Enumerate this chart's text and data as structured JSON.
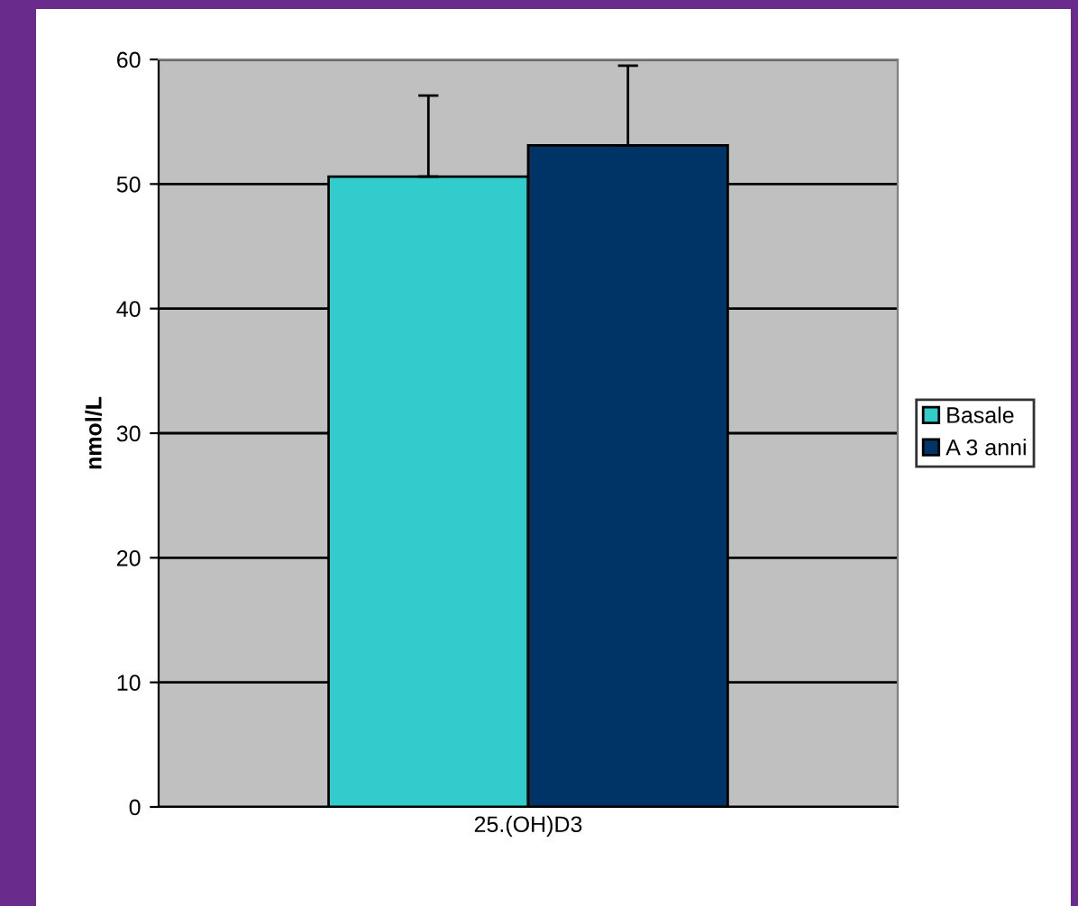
{
  "chart_data": {
    "type": "bar",
    "ylabel": "nmol/L",
    "categories": [
      "25.(OH)D3"
    ],
    "series": [
      {
        "name": "Basale",
        "color": "#33cccc",
        "values": [
          50.6
        ],
        "errors": [
          [
            50.6,
            57.1
          ]
        ]
      },
      {
        "name": "A 3 anni",
        "color": "#003366",
        "values": [
          53.1
        ],
        "errors": [
          [
            53.1,
            59.5
          ]
        ]
      }
    ],
    "ylim": [
      0,
      60
    ],
    "yticks": [
      0,
      10,
      20,
      30,
      40,
      50,
      60
    ],
    "grid": "y",
    "legend": "right"
  }
}
